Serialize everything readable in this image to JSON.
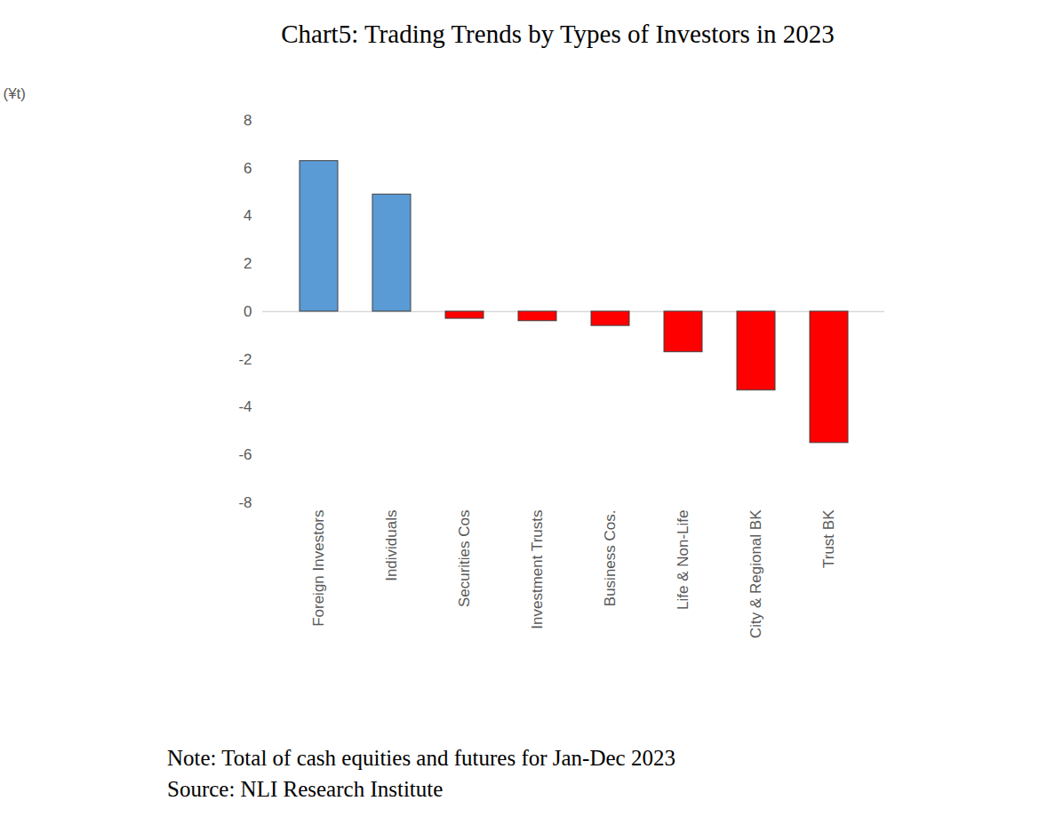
{
  "chart_data": {
    "type": "bar",
    "title": "Chart5: Trading Trends by Types of Investors in 2023",
    "y_label": "(¥t)",
    "categories": [
      "Foreign Investors",
      "Individuals",
      "Securities Cos",
      "Investment Trusts",
      "Business Cos.",
      "Life & Non-Life",
      "City & Regional BK",
      "Trust BK"
    ],
    "values": [
      6.3,
      4.9,
      -0.3,
      -0.4,
      -0.6,
      -1.7,
      -3.3,
      -5.5
    ],
    "colors": [
      "#5b9bd5",
      "#5b9bd5",
      "#ff0000",
      "#ff0000",
      "#ff0000",
      "#ff0000",
      "#ff0000",
      "#ff0000"
    ],
    "ylim": [
      -8,
      8
    ],
    "yticks": [
      -8,
      -6,
      -4,
      -2,
      0,
      2,
      4,
      6,
      8
    ],
    "grid": false,
    "notes": [
      "Note: Total of cash equities and futures for Jan-Dec 2023",
      "Source: NLI Research Institute"
    ]
  }
}
